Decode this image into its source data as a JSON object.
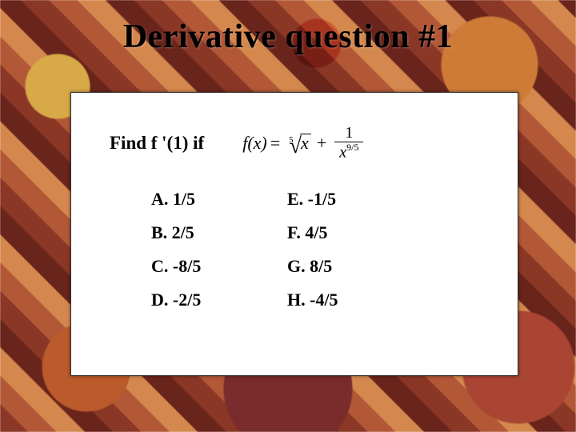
{
  "title": "Derivative question #1",
  "prompt": "Find f '(1) if",
  "formula": {
    "lhs_fn": "f",
    "lhs_arg": "x",
    "root_index": "5",
    "root_arg": "x",
    "frac_num": "1",
    "frac_den_base": "x",
    "frac_den_exp": "9/5"
  },
  "options": {
    "A": "A. 1/5",
    "B": "B. 2/5",
    "C": "C. -8/5",
    "D": "D. -2/5",
    "E": "E. -1/5",
    "F": "F. 4/5",
    "G": "G. 8/5",
    "H": "H. -4/5"
  },
  "colors": {
    "panel_bg": "#ffffff",
    "text": "#000000"
  }
}
